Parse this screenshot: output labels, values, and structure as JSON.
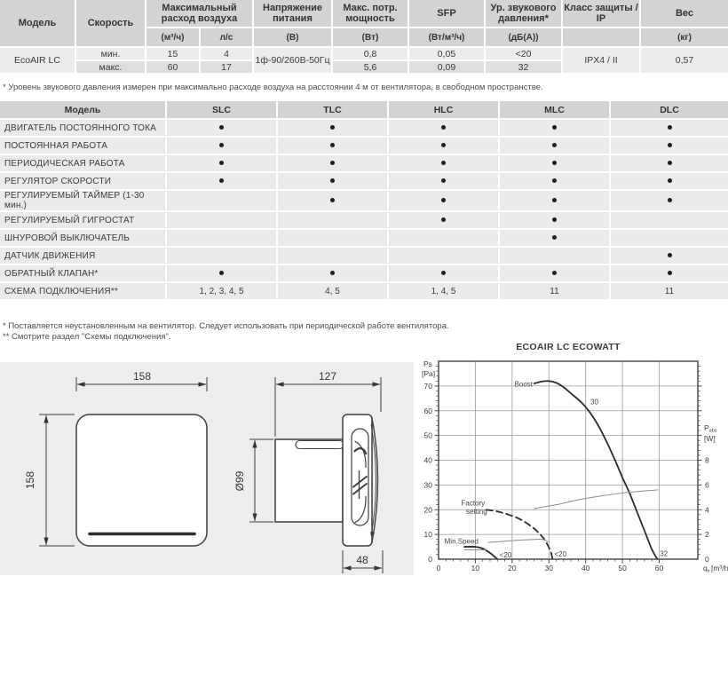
{
  "spec_table": {
    "headers": {
      "model": "Модель",
      "speed": "Скорость",
      "max_airflow": "Максимальный расход воздуха",
      "airflow_unit_m3h": "(м³/ч)",
      "airflow_unit_ls": "л/с",
      "voltage": "Напряжение питания",
      "voltage_unit": "(В)",
      "max_power": "Макс. потр. мощность",
      "max_power_unit": "(Вт)",
      "sfp": "SFP",
      "sfp_unit": "(Вт/м³/ч)",
      "sound": "Ур. звукового давления*",
      "sound_unit": "(дБ(А))",
      "protection": "Класс защиты / IP",
      "weight": "Вес",
      "weight_unit": "(кг)"
    },
    "model": "EcoAIR LC",
    "voltage": "1ф-90/260В-50Гц",
    "protection": "IPX4 / II",
    "weight": "0,57",
    "rows": [
      {
        "speed": "мин.",
        "m3h": "15",
        "ls": "4",
        "power": "0,8",
        "sfp": "0,05",
        "sound": "<20"
      },
      {
        "speed": "макс.",
        "m3h": "60",
        "ls": "17",
        "power": "5,6",
        "sfp": "0,09",
        "sound": "32"
      }
    ],
    "footnote": "* Уровень звукового давления измерен при максимально расходе воздуха на расстоянии 4 м от вентилятора, в свободном пространстве."
  },
  "features_table": {
    "header": {
      "model": "Модель",
      "columns": [
        "SLC",
        "TLC",
        "HLC",
        "MLC",
        "DLC"
      ]
    },
    "rows": [
      {
        "label": "ДВИГАТЕЛЬ ПОСТОЯННОГО ТОКА",
        "values": [
          true,
          true,
          true,
          true,
          true
        ]
      },
      {
        "label": "ПОСТОЯННАЯ РАБОТА",
        "values": [
          true,
          true,
          true,
          true,
          true
        ]
      },
      {
        "label": "ПЕРИОДИЧЕСКАЯ РАБОТА",
        "values": [
          true,
          true,
          true,
          true,
          true
        ]
      },
      {
        "label": "РЕГУЛЯТОР СКОРОСТИ",
        "values": [
          true,
          true,
          true,
          true,
          true
        ]
      },
      {
        "label": "РЕГУЛИРУЕМЫЙ ТАЙМЕР (1-30 мин.)",
        "values": [
          false,
          true,
          true,
          true,
          true
        ]
      },
      {
        "label": "РЕГУЛИРУЕМЫЙ ГИГРОСТАТ",
        "values": [
          false,
          false,
          true,
          true,
          false
        ]
      },
      {
        "label": "ШНУРОВОЙ ВЫКЛЮЧАТЕЛЬ",
        "values": [
          false,
          false,
          false,
          true,
          false
        ]
      },
      {
        "label": "ДАТЧИК ДВИЖЕНИЯ",
        "values": [
          false,
          false,
          false,
          false,
          true
        ]
      },
      {
        "label": "ОБРАТНЫЙ КЛАПАН*",
        "values": [
          true,
          true,
          true,
          true,
          true
        ]
      },
      {
        "label": "СХЕМА ПОДКЛЮЧЕНИЯ**",
        "values": [
          "1, 2, 3, 4, 5",
          "4, 5",
          "1, 4, 5",
          "11",
          "11"
        ]
      }
    ],
    "footnote1": "* Поставляется неустановленным на вентилятор. Следует использовать при периодической работе вентилятора.",
    "footnote2": "** Смотрите раздел \"Схемы подключения\"."
  },
  "drawings": {
    "front_view": {
      "width": "158",
      "height": "158"
    },
    "side_view": {
      "width": "127",
      "duct_diameter": "Ø99",
      "panel_depth": "48"
    }
  },
  "colors": {
    "table_header_bg": "#d3d3d3",
    "row_light": "#ececec",
    "row_dark": "#dedede",
    "features_row_bg": "#eaeaea",
    "panel_bg": "#ededed",
    "curve": "#2b2b2b",
    "power_curve": "#8a8a8a"
  },
  "chart_data": {
    "type": "line",
    "title": "ECOAIR LC ECOWATT",
    "xlabel": {
      "main": "q",
      "sub": "v",
      "unit": "[m³/h]"
    },
    "ylabel_left": {
      "lines": [
        "Ps",
        "[Pa]"
      ]
    },
    "ylabel_right": {
      "main": "P",
      "sub": "abs",
      "unit": "[W]"
    },
    "xlim": [
      0,
      70.5
    ],
    "ylim_left": [
      0,
      80
    ],
    "right_axis_pa_per_watt": 5,
    "x_ticks": [
      0,
      10,
      20,
      30,
      40,
      50,
      60
    ],
    "y_ticks_left": [
      0,
      10,
      20,
      30,
      40,
      50,
      60,
      70
    ],
    "y_ticks_right": [
      0,
      2,
      4,
      6,
      8
    ],
    "grid": true,
    "series": [
      {
        "name": "Boost pressure",
        "axis": "left",
        "style": "solid-thick",
        "points": [
          [
            26,
            71
          ],
          [
            28,
            71.8
          ],
          [
            30,
            72
          ],
          [
            32,
            71.3
          ],
          [
            34,
            69.5
          ],
          [
            36,
            67
          ],
          [
            38,
            64.5
          ],
          [
            40,
            61.5
          ],
          [
            42,
            57.5
          ],
          [
            44,
            52.5
          ],
          [
            46,
            46.5
          ],
          [
            48,
            40
          ],
          [
            50,
            33
          ],
          [
            52,
            26.5
          ],
          [
            54,
            19
          ],
          [
            56,
            11.5
          ],
          [
            58,
            4
          ],
          [
            59.5,
            0
          ]
        ]
      },
      {
        "name": "Boost power",
        "axis": "right",
        "style": "thin",
        "points": [
          [
            26,
            4.1
          ],
          [
            32,
            4.4
          ],
          [
            38,
            4.8
          ],
          [
            44,
            5.1
          ],
          [
            50,
            5.35
          ],
          [
            55,
            5.5
          ],
          [
            59.5,
            5.6
          ]
        ]
      },
      {
        "name": "Factory setting pressure",
        "axis": "left",
        "style": "dashed",
        "points": [
          [
            13,
            20
          ],
          [
            16,
            19.3
          ],
          [
            19,
            18
          ],
          [
            22,
            16.3
          ],
          [
            25,
            13.5
          ],
          [
            27,
            11
          ],
          [
            29,
            7.5
          ],
          [
            30.5,
            3
          ],
          [
            31,
            0
          ]
        ]
      },
      {
        "name": "Factory setting power",
        "axis": "right",
        "style": "thin",
        "points": [
          [
            13.5,
            1.35
          ],
          [
            20,
            1.5
          ],
          [
            26,
            1.6
          ],
          [
            28.5,
            1.6
          ],
          [
            29.8,
            1.4
          ]
        ]
      },
      {
        "name": "Min speed pressure",
        "axis": "left",
        "style": "solid-thick",
        "points": [
          [
            7,
            5
          ],
          [
            10,
            5
          ],
          [
            12,
            4.3
          ],
          [
            14,
            2.5
          ],
          [
            16,
            0
          ]
        ]
      },
      {
        "name": "Min speed power",
        "axis": "right",
        "style": "thin",
        "points": [
          [
            7,
            0.75
          ],
          [
            13,
            0.75
          ]
        ]
      }
    ],
    "annotations": [
      {
        "text": "Boost",
        "x": 25.6,
        "y": 70.6,
        "anchor": "end"
      },
      {
        "text": "30",
        "x": 41.3,
        "y": 63.5,
        "anchor": "start"
      },
      {
        "text": "32",
        "x": 60.2,
        "y": 2.2,
        "anchor": "start"
      },
      {
        "text": "Factory",
        "x": 12.6,
        "y": 22.6,
        "anchor": "end"
      },
      {
        "text": "setting",
        "x": 13.2,
        "y": 19.2,
        "anchor": "end"
      },
      {
        "text": "Min.Speed",
        "x": 1.6,
        "y": 7.2,
        "anchor": "start"
      },
      {
        "text": "<20",
        "x": 16.6,
        "y": 1.6,
        "anchor": "start"
      },
      {
        "text": "<20",
        "x": 31.5,
        "y": 2.0,
        "anchor": "start"
      }
    ]
  }
}
